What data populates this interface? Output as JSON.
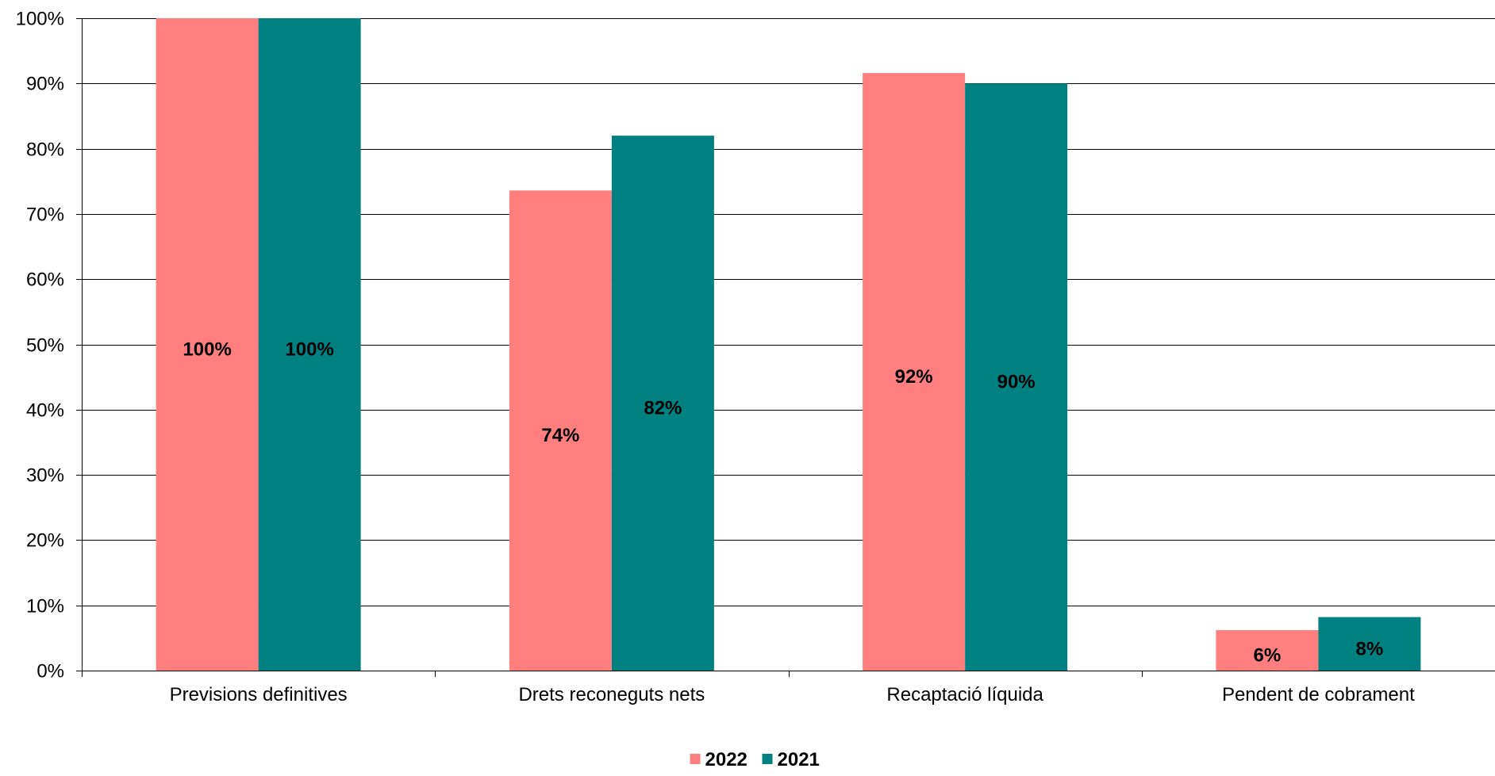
{
  "chart_data": {
    "type": "bar",
    "categories": [
      "Previsions definitives",
      "Drets reconeguts nets",
      "Recaptació líquida",
      "Pendent de cobrament"
    ],
    "series": [
      {
        "name": "2022",
        "color": "#FF7F7F",
        "values": [
          100,
          73.6,
          91.6,
          6.2
        ],
        "labels": [
          "100%",
          "74%",
          "92%",
          "6%"
        ]
      },
      {
        "name": "2021",
        "color": "#008080",
        "values": [
          100,
          82.0,
          90.0,
          8.2
        ],
        "labels": [
          "100%",
          "82%",
          "90%",
          "8%"
        ]
      }
    ],
    "ylim": [
      0,
      100
    ],
    "yticks": [
      0,
      10,
      20,
      30,
      40,
      50,
      60,
      70,
      80,
      90,
      100
    ],
    "ytick_labels": [
      "0%",
      "10%",
      "20%",
      "30%",
      "40%",
      "50%",
      "60%",
      "70%",
      "80%",
      "90%",
      "100%"
    ],
    "grid": true,
    "legend_position": "bottom",
    "title": "",
    "xlabel": "",
    "ylabel": ""
  }
}
